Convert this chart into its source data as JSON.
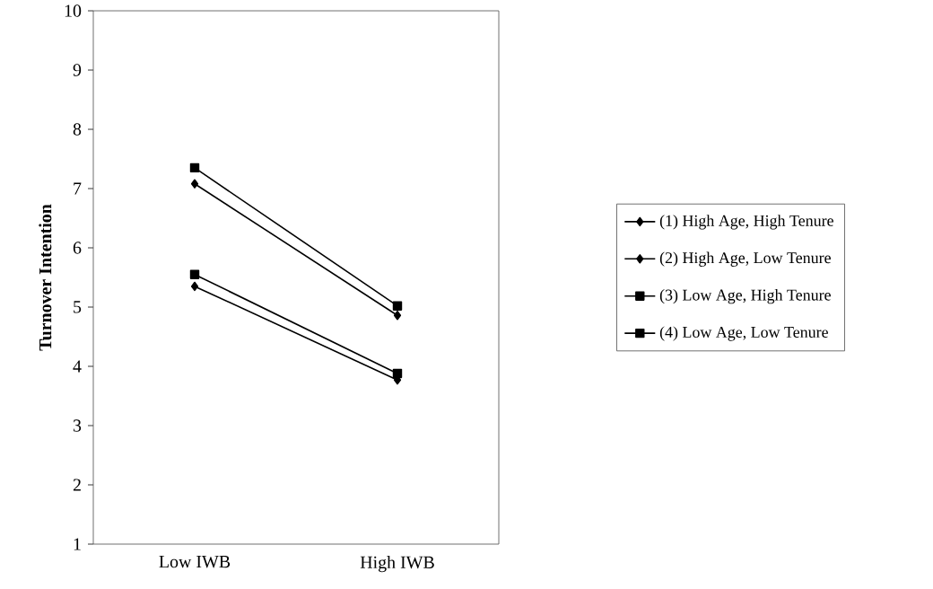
{
  "chart_data": {
    "type": "line",
    "ylabel": "Turnover Intention",
    "categories": [
      "Low IWB",
      "High IWB"
    ],
    "series": [
      {
        "name": "(1) High Age, High Tenure",
        "color": "#000000",
        "marker": "diamond",
        "values": [
          5.35,
          3.77
        ]
      },
      {
        "name": "(2) High Age, Low Tenure",
        "color": "#000000",
        "marker": "diamond",
        "values": [
          7.08,
          4.86
        ]
      },
      {
        "name": "(3) Low Age, High Tenure",
        "color": "#000000",
        "marker": "square",
        "values": [
          5.55,
          3.88
        ]
      },
      {
        "name": "(4) Low Age, Low Tenure",
        "color": "#000000",
        "marker": "square",
        "values": [
          7.35,
          5.02
        ]
      }
    ],
    "ylim": [
      1,
      10
    ],
    "yticks": [
      1,
      2,
      3,
      4,
      5,
      6,
      7,
      8,
      9,
      10
    ],
    "legend": "right",
    "grid": false,
    "line_style": "solid"
  }
}
